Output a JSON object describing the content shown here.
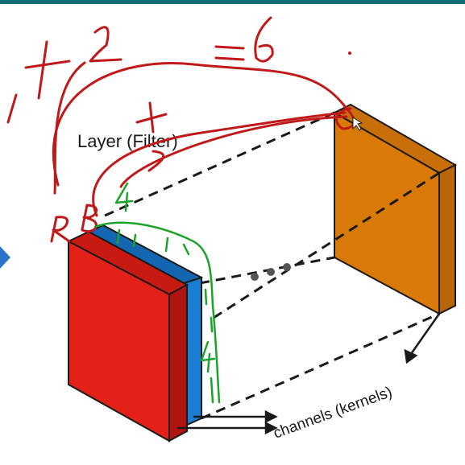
{
  "slide": {
    "layer_label": "Layer (Filter)",
    "channels_label": "channels (kernels)",
    "ellipsis_dots": 3
  },
  "annotations": {
    "equation_tokens": [
      "1",
      "+",
      "2",
      "=",
      "6"
    ],
    "plus_mark": "+",
    "label_r": "R",
    "label_b": "B",
    "label_4": "4",
    "small_numbers": [
      "1",
      "1",
      "1"
    ],
    "kernel_value": "4",
    "sidebar_numbers": [
      "1",
      "1",
      "1",
      "1"
    ]
  },
  "colors": {
    "topbar": "#0f6b78",
    "red_face": "#e32118",
    "red_side": "#b0150f",
    "red_top": "#c81a12",
    "blue_face": "#1a7fd4",
    "orange_face": "#d97a08",
    "orange_side": "#b9650a",
    "orange_top": "#c86f09",
    "ink": "#1a1a1a",
    "annotation_red": "#c0191a",
    "annotation_green": "#1ca42a",
    "side_arrow": "#2c74c5"
  }
}
